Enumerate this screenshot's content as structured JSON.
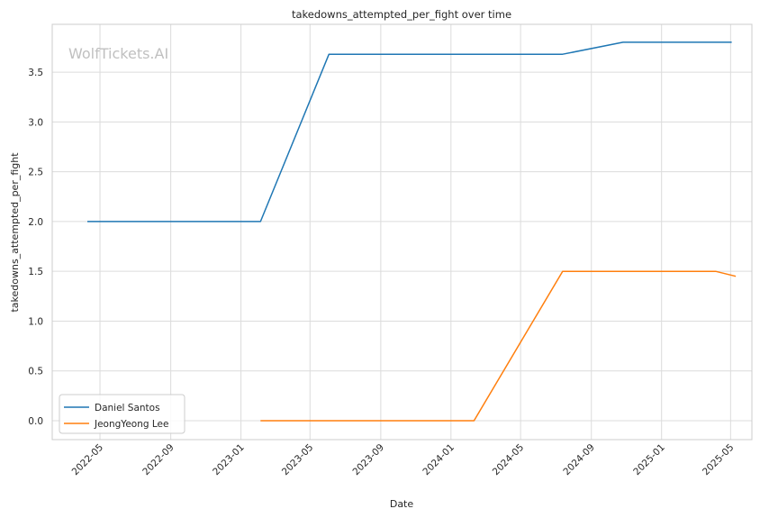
{
  "chart_data": {
    "type": "line",
    "title": "takedowns_attempted_per_fight over time",
    "xlabel": "Date",
    "ylabel": "takedowns_attempted_per_fight",
    "watermark": "WolfTickets.AI",
    "xlim": [
      "2022-02-07",
      "2025-06-07"
    ],
    "ylim": [
      -0.19,
      3.98
    ],
    "x_ticks": [
      "2022-05",
      "2022-09",
      "2023-01",
      "2023-05",
      "2023-09",
      "2024-01",
      "2024-05",
      "2024-09",
      "2025-01",
      "2025-05"
    ],
    "y_ticks": [
      "0.0",
      "0.5",
      "1.0",
      "1.5",
      "2.0",
      "2.5",
      "3.0",
      "3.5"
    ],
    "grid": true,
    "legend_position": "lower-left",
    "series": [
      {
        "name": "Daniel Santos",
        "color": "#1f77b4",
        "points": [
          {
            "x": "2022-04-09",
            "y": 2.0
          },
          {
            "x": "2023-02-04",
            "y": 2.0
          },
          {
            "x": "2023-06-03",
            "y": 3.68
          },
          {
            "x": "2024-07-13",
            "y": 3.68
          },
          {
            "x": "2024-10-26",
            "y": 3.8
          },
          {
            "x": "2025-05-03",
            "y": 3.8
          }
        ]
      },
      {
        "name": "JeongYeong Lee",
        "color": "#ff7f0e",
        "points": [
          {
            "x": "2023-02-04",
            "y": 0.0
          },
          {
            "x": "2024-02-10",
            "y": 0.0
          },
          {
            "x": "2024-07-13",
            "y": 1.5
          },
          {
            "x": "2025-04-05",
            "y": 1.5
          },
          {
            "x": "2025-05-10",
            "y": 1.45
          }
        ]
      }
    ]
  }
}
